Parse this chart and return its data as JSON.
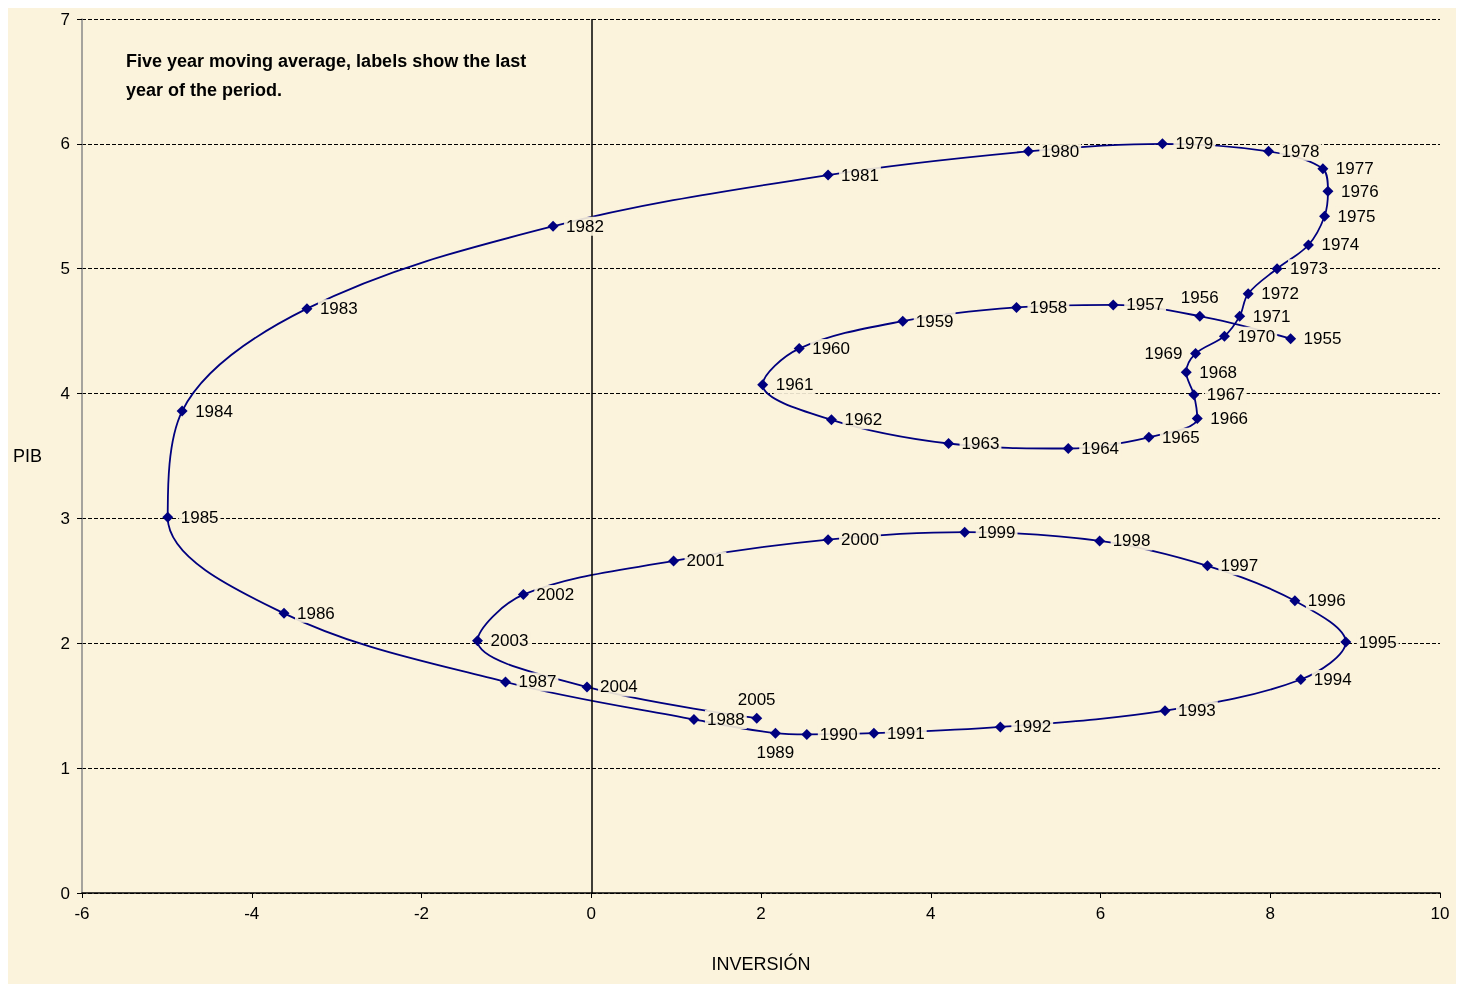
{
  "chart_data": {
    "type": "line",
    "xlabel": "INVERSIÓN",
    "ylabel": "PIB",
    "annotations": [
      "Five year moving average, labels show the last year of the period.",
      {
        "text": "1955",
        "x": 8.24,
        "y": 4.44
      },
      {
        "text": "1956",
        "x": 7.17,
        "y": 4.62
      },
      {
        "text": "1957",
        "x": 6.15,
        "y": 4.71
      },
      {
        "text": "1958",
        "x": 5.01,
        "y": 4.69
      },
      {
        "text": "1959",
        "x": 3.67,
        "y": 4.58
      },
      {
        "text": "1960",
        "x": 2.45,
        "y": 4.36
      },
      {
        "text": "1961",
        "x": 2.02,
        "y": 4.07
      },
      {
        "text": "1962",
        "x": 2.83,
        "y": 3.79
      },
      {
        "text": "1963",
        "x": 4.21,
        "y": 3.6
      },
      {
        "text": "1964",
        "x": 5.62,
        "y": 3.56
      },
      {
        "text": "1965",
        "x": 6.57,
        "y": 3.65
      },
      {
        "text": "1966",
        "x": 7.14,
        "y": 3.8
      },
      {
        "text": "1967",
        "x": 7.1,
        "y": 3.99
      },
      {
        "text": "1968",
        "x": 7.01,
        "y": 4.17
      },
      {
        "text": "1969",
        "x": 7.12,
        "y": 4.32
      },
      {
        "text": "1970",
        "x": 7.46,
        "y": 4.46
      },
      {
        "text": "1971",
        "x": 7.64,
        "y": 4.62
      },
      {
        "text": "1972",
        "x": 7.74,
        "y": 4.8
      },
      {
        "text": "1973",
        "x": 8.08,
        "y": 5.0
      },
      {
        "text": "1974",
        "x": 8.45,
        "y": 5.19
      },
      {
        "text": "1975",
        "x": 8.64,
        "y": 5.42
      },
      {
        "text": "1976",
        "x": 8.68,
        "y": 5.62
      },
      {
        "text": "1977",
        "x": 8.62,
        "y": 5.8
      },
      {
        "text": "1978",
        "x": 7.98,
        "y": 5.94
      },
      {
        "text": "1979",
        "x": 6.73,
        "y": 6.0
      },
      {
        "text": "1980",
        "x": 5.15,
        "y": 5.94
      },
      {
        "text": "1981",
        "x": 2.79,
        "y": 5.75
      },
      {
        "text": "1982",
        "x": -0.45,
        "y": 5.34
      },
      {
        "text": "1983",
        "x": -3.35,
        "y": 4.68
      },
      {
        "text": "1984",
        "x": -4.82,
        "y": 3.86
      },
      {
        "text": "1985",
        "x": -4.99,
        "y": 3.01
      },
      {
        "text": "1986",
        "x": -3.62,
        "y": 2.24
      },
      {
        "text": "1987",
        "x": -1.01,
        "y": 1.69
      },
      {
        "text": "1988",
        "x": 1.21,
        "y": 1.39
      },
      {
        "text": "1989",
        "x": 2.17,
        "y": 1.28
      },
      {
        "text": "1990",
        "x": 2.54,
        "y": 1.27
      },
      {
        "text": "1991",
        "x": 3.33,
        "y": 1.28
      },
      {
        "text": "1992",
        "x": 4.82,
        "y": 1.33
      },
      {
        "text": "1993",
        "x": 6.76,
        "y": 1.46
      },
      {
        "text": "1994",
        "x": 8.36,
        "y": 1.71
      },
      {
        "text": "1995",
        "x": 8.89,
        "y": 2.01
      },
      {
        "text": "1996",
        "x": 8.29,
        "y": 2.34
      },
      {
        "text": "1997",
        "x": 7.26,
        "y": 2.62
      },
      {
        "text": "1998",
        "x": 5.99,
        "y": 2.82
      },
      {
        "text": "1999",
        "x": 4.4,
        "y": 2.89
      },
      {
        "text": "2000",
        "x": 2.79,
        "y": 2.83
      },
      {
        "text": "2001",
        "x": 0.97,
        "y": 2.66
      },
      {
        "text": "2002",
        "x": -0.8,
        "y": 2.39
      },
      {
        "text": "2003",
        "x": -1.34,
        "y": 2.02
      },
      {
        "text": "2004",
        "x": -0.05,
        "y": 1.65
      },
      {
        "text": "2005",
        "x": 1.95,
        "y": 1.4
      }
    ],
    "x": [
      8.24,
      7.17,
      6.15,
      5.01,
      3.67,
      2.45,
      2.02,
      2.83,
      4.21,
      5.62,
      6.57,
      7.14,
      7.1,
      7.01,
      7.12,
      7.46,
      7.64,
      7.74,
      8.08,
      8.45,
      8.64,
      8.68,
      8.62,
      7.98,
      6.73,
      5.15,
      2.79,
      -0.45,
      -3.35,
      -4.82,
      -4.99,
      -3.62,
      -1.01,
      1.21,
      2.17,
      2.54,
      3.33,
      4.82,
      6.76,
      8.36,
      8.89,
      8.29,
      7.26,
      5.99,
      4.4,
      2.79,
      0.97,
      -0.8,
      -1.34,
      -0.05,
      1.95
    ],
    "series": [
      {
        "color": "#00007f",
        "values": [
          4.44,
          4.62,
          4.71,
          4.69,
          4.58,
          4.36,
          4.07,
          3.79,
          3.6,
          3.56,
          3.65,
          3.8,
          3.99,
          4.17,
          4.32,
          4.46,
          4.62,
          4.8,
          5.0,
          5.19,
          5.42,
          5.62,
          5.8,
          5.94,
          6.0,
          5.94,
          5.75,
          5.34,
          4.68,
          3.86,
          3.01,
          2.24,
          1.69,
          1.39,
          1.28,
          1.27,
          1.28,
          1.33,
          1.46,
          1.71,
          2.01,
          2.34,
          2.62,
          2.82,
          2.89,
          2.83,
          2.66,
          2.39,
          2.02,
          1.65,
          1.4
        ]
      }
    ],
    "xlim": [
      -6,
      10
    ],
    "xticks": [
      -6,
      -4,
      -2,
      0,
      2,
      4,
      6,
      8,
      10
    ],
    "ylim": [
      0,
      7
    ],
    "yticks": [
      0,
      1,
      2,
      3,
      4,
      5,
      6,
      7
    ],
    "grid": "y",
    "marker": "diamond",
    "line_style": "solid",
    "ref_lines": [
      {
        "axis": "x",
        "value": 0,
        "color": "#000000"
      }
    ]
  }
}
